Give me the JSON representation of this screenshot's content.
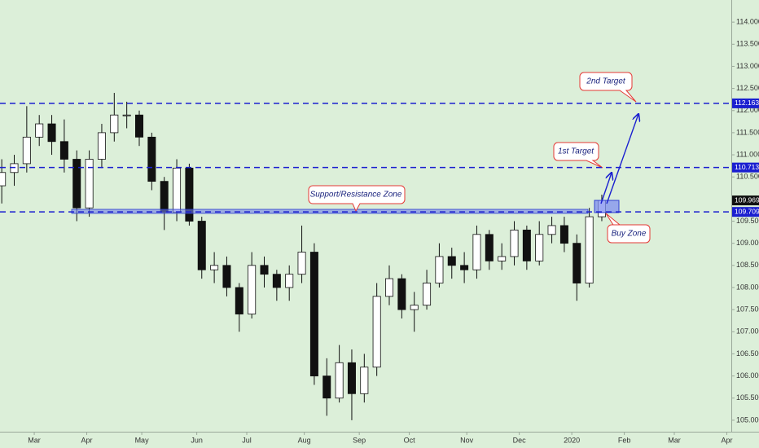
{
  "chart_data": {
    "type": "candlestick",
    "x": [
      -13,
      -8,
      -3,
      2,
      7,
      12,
      17,
      22,
      27,
      32,
      37,
      42,
      47,
      52,
      57,
      62,
      67,
      72,
      77,
      82,
      87,
      92,
      97,
      102,
      107,
      112,
      117,
      122,
      127,
      132,
      137,
      142,
      147,
      152,
      157,
      162,
      167,
      172,
      177,
      182,
      187,
      192,
      197,
      202,
      207,
      212,
      217,
      222,
      227
    ],
    "open": [
      110.3,
      110.6,
      110.8,
      111.4,
      111.7,
      111.3,
      110.9,
      109.8,
      110.9,
      111.5,
      111.9,
      111.9,
      111.4,
      110.4,
      109.7,
      110.7,
      109.5,
      108.4,
      108.5,
      108.0,
      107.4,
      108.5,
      108.3,
      108.0,
      108.3,
      108.8,
      106.0,
      105.5,
      106.3,
      105.6,
      106.2,
      107.8,
      108.2,
      107.5,
      107.6,
      108.1,
      108.7,
      108.5,
      108.4,
      109.2,
      108.6,
      108.7,
      109.3,
      108.6,
      109.2,
      109.4,
      109.0,
      108.1,
      109.6
    ],
    "high": [
      110.9,
      111.0,
      112.1,
      111.9,
      111.9,
      111.8,
      111.1,
      111.1,
      111.7,
      112.4,
      112.2,
      112.0,
      111.5,
      110.5,
      110.9,
      110.8,
      109.6,
      108.8,
      108.7,
      108.1,
      108.8,
      108.7,
      108.4,
      108.5,
      109.4,
      109.0,
      106.4,
      106.7,
      106.6,
      106.5,
      108.1,
      108.5,
      108.3,
      107.9,
      108.4,
      109.0,
      108.9,
      108.8,
      109.4,
      109.3,
      109.0,
      109.5,
      109.4,
      109.5,
      109.6,
      109.6,
      109.2,
      109.8,
      110.1
    ],
    "low": [
      109.9,
      110.3,
      110.6,
      111.2,
      111.0,
      110.6,
      109.5,
      109.6,
      110.7,
      111.3,
      111.6,
      111.2,
      110.2,
      109.3,
      109.5,
      109.4,
      108.2,
      108.1,
      107.8,
      107.0,
      107.3,
      108.0,
      107.7,
      107.7,
      108.1,
      105.8,
      105.1,
      105.4,
      105.0,
      105.4,
      106.0,
      107.6,
      107.3,
      107.0,
      107.5,
      108.0,
      108.2,
      108.1,
      108.2,
      108.4,
      108.4,
      108.5,
      108.4,
      108.5,
      109.0,
      108.8,
      107.7,
      108.0,
      109.5
    ],
    "close": [
      110.6,
      110.8,
      111.4,
      111.7,
      111.3,
      110.9,
      109.8,
      110.9,
      111.5,
      111.9,
      111.9,
      111.4,
      110.4,
      109.7,
      110.7,
      109.5,
      108.4,
      108.5,
      108.0,
      107.4,
      108.5,
      108.3,
      108.0,
      108.3,
      108.8,
      106.0,
      105.5,
      106.3,
      105.6,
      106.2,
      107.8,
      108.2,
      107.5,
      107.6,
      108.1,
      108.7,
      108.5,
      108.4,
      109.2,
      108.6,
      108.7,
      109.3,
      108.6,
      109.2,
      109.4,
      109.0,
      108.1,
      109.6,
      109.97
    ],
    "xlim": [
      -13.7,
      278.8
    ],
    "xticks": [
      {
        "value": 0,
        "label": "Mar"
      },
      {
        "value": 21,
        "label": "Apr"
      },
      {
        "value": 43,
        "label": "May"
      },
      {
        "value": 65,
        "label": "Jun"
      },
      {
        "value": 85,
        "label": "Jul"
      },
      {
        "value": 108,
        "label": "Aug"
      },
      {
        "value": 130,
        "label": "Sep"
      },
      {
        "value": 150,
        "label": "Oct"
      },
      {
        "value": 173,
        "label": "Nov"
      },
      {
        "value": 194,
        "label": "Dec"
      },
      {
        "value": 215,
        "label": "2020"
      },
      {
        "value": 236,
        "label": "Feb"
      },
      {
        "value": 256,
        "label": "Mar"
      },
      {
        "value": 277,
        "label": "Apr"
      }
    ],
    "ylim": [
      104.74,
      114.5
    ],
    "yticks": [
      {
        "value": 105,
        "label": "105.000"
      },
      {
        "value": 105.5,
        "label": "105.500"
      },
      {
        "value": 106,
        "label": "106.000"
      },
      {
        "value": 106.5,
        "label": "106.500"
      },
      {
        "value": 107,
        "label": "107.000"
      },
      {
        "value": 107.5,
        "label": "107.500"
      },
      {
        "value": 108,
        "label": "108.000"
      },
      {
        "value": 108.5,
        "label": "108.500"
      },
      {
        "value": 109,
        "label": "109.000"
      },
      {
        "value": 109.5,
        "label": "109.500"
      },
      {
        "value": 110.5,
        "label": "110.500"
      },
      {
        "value": 111,
        "label": "111.000"
      },
      {
        "value": 111.5,
        "label": "111.500"
      },
      {
        "value": 112,
        "label": "112.000"
      },
      {
        "value": 112.5,
        "label": "112.500"
      },
      {
        "value": 113,
        "label": "113.000"
      },
      {
        "value": 113.5,
        "label": "113.500"
      },
      {
        "value": 114,
        "label": "114.000"
      }
    ],
    "levels": [
      112.163,
      110.713,
      109.709
    ],
    "level_color": "#1a1fd0",
    "last_price": 109.969,
    "annotations": [
      "Support/Resistance Zone",
      "1st Target",
      "2nd Target",
      "Buy Zone"
    ]
  }
}
